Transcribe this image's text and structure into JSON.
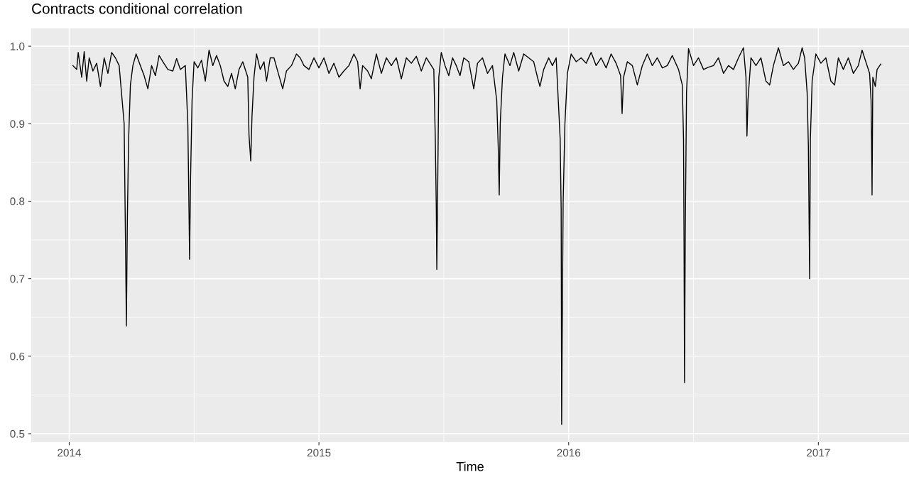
{
  "chart_data": {
    "type": "line",
    "title": "Contracts conditional correlation",
    "xlabel": "Time",
    "xlim": [
      2013.848,
      2017.363
    ],
    "ylim": [
      0.489,
      1.023
    ],
    "xticks": [
      2014,
      2015,
      2016,
      2017
    ],
    "yticks": [
      0.5,
      0.6,
      0.7,
      0.8,
      0.9,
      {
        "value": 1.0,
        "label": "1.0"
      }
    ],
    "grid": true,
    "marker": "none",
    "line_style": "solid",
    "series": [
      {
        "color": "#000000",
        "x": [
          2014.015,
          2014.03,
          2014.036,
          2014.05,
          2014.06,
          2014.07,
          2014.08,
          2014.095,
          2014.11,
          2014.125,
          2014.14,
          2014.155,
          2014.17,
          2014.185,
          2014.2,
          2014.22,
          2014.226,
          2014.229,
          2014.233,
          2014.238,
          2014.245,
          2014.255,
          2014.268,
          2014.285,
          2014.3,
          2014.315,
          2014.33,
          2014.345,
          2014.36,
          2014.375,
          2014.395,
          2014.415,
          2014.43,
          2014.445,
          2014.465,
          2014.475,
          2014.48,
          2014.482,
          2014.486,
          2014.492,
          2014.5,
          2014.515,
          2014.53,
          2014.545,
          2014.56,
          2014.575,
          2014.59,
          2014.605,
          2014.62,
          2014.635,
          2014.65,
          2014.665,
          2014.68,
          2014.695,
          2014.715,
          2014.72,
          2014.727,
          2014.732,
          2014.74,
          2014.75,
          2014.765,
          2014.78,
          2014.79,
          2014.805,
          2014.82,
          2014.84,
          2014.855,
          2014.87,
          2014.89,
          2014.91,
          2014.925,
          2014.94,
          2014.96,
          2014.98,
          2015.0,
          2015.02,
          2015.04,
          2015.06,
          2015.08,
          2015.1,
          2015.12,
          2015.14,
          2015.155,
          2015.165,
          2015.175,
          2015.195,
          2015.21,
          2015.23,
          2015.25,
          2015.27,
          2015.29,
          2015.31,
          2015.33,
          2015.35,
          2015.37,
          2015.39,
          2015.41,
          2015.43,
          2015.46,
          2015.466,
          2015.47,
          2015.472,
          2015.475,
          2015.48,
          2015.49,
          2015.505,
          2015.52,
          2015.535,
          2015.55,
          2015.565,
          2015.58,
          2015.6,
          2015.62,
          2015.635,
          2015.655,
          2015.675,
          2015.695,
          2015.712,
          2015.718,
          2015.722,
          2015.726,
          2015.735,
          2015.745,
          2015.765,
          2015.78,
          2015.8,
          2015.82,
          2015.84,
          2015.86,
          2015.875,
          2015.885,
          2015.9,
          2015.92,
          2015.935,
          2015.95,
          2015.96,
          2015.966,
          2015.97,
          2015.972,
          2015.974,
          2015.978,
          2015.985,
          2015.995,
          2016.01,
          2016.03,
          2016.05,
          2016.07,
          2016.09,
          2016.11,
          2016.13,
          2016.15,
          2016.17,
          2016.19,
          2016.208,
          2016.214,
          2016.22,
          2016.235,
          2016.255,
          2016.275,
          2016.295,
          2016.315,
          2016.335,
          2016.355,
          2016.375,
          2016.395,
          2016.415,
          2016.44,
          2016.455,
          2016.46,
          2016.462,
          2016.464,
          2016.467,
          2016.472,
          2016.48,
          2016.5,
          2016.52,
          2016.54,
          2016.56,
          2016.58,
          2016.6,
          2016.62,
          2016.64,
          2016.66,
          2016.68,
          2016.7,
          2016.71,
          2016.714,
          2016.718,
          2016.73,
          2016.75,
          2016.77,
          2016.79,
          2016.805,
          2016.82,
          2016.84,
          2016.86,
          2016.88,
          2016.9,
          2016.92,
          2016.935,
          2016.945,
          2016.955,
          2016.96,
          2016.963,
          2016.965,
          2016.968,
          2016.975,
          2016.99,
          2017.01,
          2017.03,
          2017.05,
          2017.065,
          2017.08,
          2017.1,
          2017.12,
          2017.14,
          2017.16,
          2017.175,
          2017.19,
          2017.205,
          2017.211,
          2017.213,
          2017.215,
          2017.218,
          2017.228,
          2017.235,
          2017.25
        ],
        "values": [
          0.975,
          0.97,
          0.992,
          0.96,
          0.993,
          0.955,
          0.985,
          0.968,
          0.978,
          0.948,
          0.985,
          0.965,
          0.992,
          0.985,
          0.975,
          0.9,
          0.73,
          0.639,
          0.78,
          0.88,
          0.95,
          0.975,
          0.99,
          0.975,
          0.962,
          0.945,
          0.975,
          0.962,
          0.988,
          0.98,
          0.97,
          0.968,
          0.984,
          0.97,
          0.975,
          0.9,
          0.78,
          0.725,
          0.83,
          0.93,
          0.98,
          0.972,
          0.982,
          0.955,
          0.995,
          0.975,
          0.988,
          0.975,
          0.955,
          0.948,
          0.965,
          0.945,
          0.97,
          0.98,
          0.96,
          0.885,
          0.852,
          0.91,
          0.96,
          0.99,
          0.97,
          0.98,
          0.955,
          0.985,
          0.985,
          0.962,
          0.945,
          0.968,
          0.975,
          0.99,
          0.985,
          0.975,
          0.97,
          0.985,
          0.972,
          0.985,
          0.965,
          0.978,
          0.96,
          0.968,
          0.975,
          0.99,
          0.98,
          0.945,
          0.975,
          0.968,
          0.958,
          0.99,
          0.965,
          0.985,
          0.975,
          0.985,
          0.958,
          0.985,
          0.978,
          0.987,
          0.968,
          0.985,
          0.97,
          0.88,
          0.79,
          0.712,
          0.8,
          0.96,
          0.992,
          0.975,
          0.962,
          0.985,
          0.975,
          0.962,
          0.985,
          0.98,
          0.945,
          0.978,
          0.985,
          0.965,
          0.975,
          0.93,
          0.87,
          0.808,
          0.9,
          0.96,
          0.99,
          0.975,
          0.992,
          0.968,
          0.99,
          0.985,
          0.98,
          0.96,
          0.948,
          0.97,
          0.985,
          0.975,
          0.985,
          0.92,
          0.88,
          0.79,
          0.512,
          0.62,
          0.8,
          0.9,
          0.965,
          0.99,
          0.98,
          0.985,
          0.978,
          0.992,
          0.975,
          0.985,
          0.972,
          0.99,
          0.978,
          0.962,
          0.913,
          0.96,
          0.98,
          0.975,
          0.95,
          0.975,
          0.99,
          0.975,
          0.985,
          0.972,
          0.975,
          0.988,
          0.97,
          0.95,
          0.88,
          0.75,
          0.566,
          0.76,
          0.94,
          0.997,
          0.975,
          0.985,
          0.97,
          0.973,
          0.975,
          0.985,
          0.965,
          0.975,
          0.97,
          0.985,
          0.998,
          0.96,
          0.884,
          0.93,
          0.985,
          0.975,
          0.985,
          0.955,
          0.95,
          0.975,
          0.998,
          0.975,
          0.98,
          0.97,
          0.978,
          0.998,
          0.985,
          0.94,
          0.87,
          0.77,
          0.7,
          0.88,
          0.955,
          0.99,
          0.978,
          0.985,
          0.955,
          0.95,
          0.985,
          0.97,
          0.985,
          0.965,
          0.975,
          0.995,
          0.98,
          0.965,
          0.93,
          0.88,
          0.808,
          0.96,
          0.948,
          0.97,
          0.977
        ]
      }
    ]
  }
}
